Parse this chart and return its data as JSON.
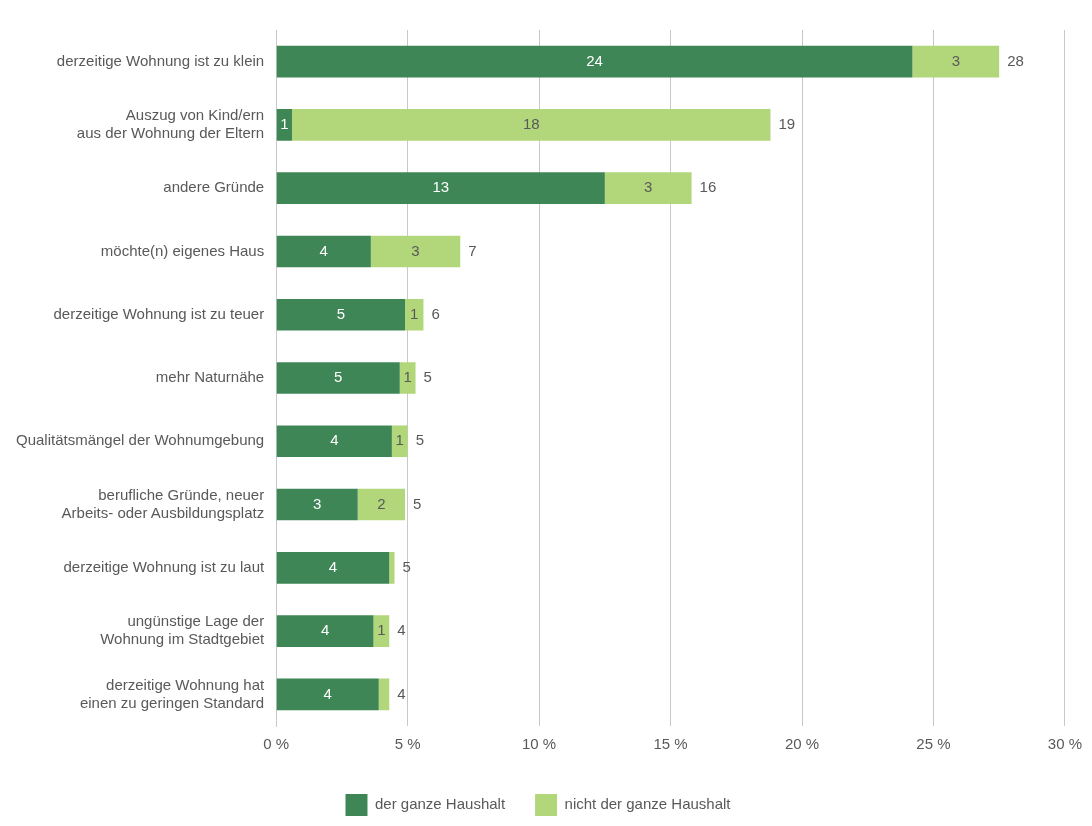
{
  "chart_data": {
    "type": "bar",
    "orientation": "horizontal",
    "stacked": true,
    "categories": [
      "derzeitige Wohnung ist zu klein",
      "Auszug von Kind/ern\naus der Wohnung der Eltern",
      "andere Gründe",
      "möchte(n) eigenes Haus",
      "derzeitige Wohnung ist zu teuer",
      "mehr Naturnähe",
      "Qualitätsmängel der Wohnumgebung",
      "berufliche Gründe, neuer\nArbeits- oder Ausbildungsplatz",
      "derzeitige Wohnung ist zu laut",
      "ungünstige Lage der\nWohnung im Stadtgebiet",
      "derzeitige Wohnung hat\neinen zu geringen Standard"
    ],
    "series": [
      {
        "name": "der ganze Haushalt",
        "color": "#3f8656",
        "values": [
          24.2,
          0.6,
          12.5,
          3.6,
          4.9,
          4.7,
          4.4,
          3.1,
          4.3,
          3.7,
          3.9
        ],
        "value_labels": [
          "24",
          "1",
          "13",
          "4",
          "5",
          "5",
          "4",
          "3",
          "4",
          "4",
          "4"
        ]
      },
      {
        "name": "nicht der ganze Haushalt",
        "color": "#b2d67a",
        "values": [
          3.3,
          18.2,
          3.3,
          3.4,
          0.7,
          0.6,
          0.6,
          1.8,
          0.2,
          0.6,
          0.4
        ],
        "value_labels": [
          "3",
          "18",
          "3",
          "3",
          "1",
          "1",
          "1",
          "2",
          null,
          "1",
          null
        ]
      }
    ],
    "totals": [
      "28",
      "19",
      "16",
      "7",
      "6",
      "5",
      "5",
      "5",
      "5",
      "4",
      "4"
    ],
    "xlim": [
      0,
      30
    ],
    "xticks": [
      {
        "value": 0,
        "label": "0 %"
      },
      {
        "value": 5,
        "label": "5 %"
      },
      {
        "value": 10,
        "label": "10 %"
      },
      {
        "value": 15,
        "label": "15 %"
      },
      {
        "value": 20,
        "label": "20 %"
      },
      {
        "value": 25,
        "label": "25 %"
      },
      {
        "value": 30,
        "label": "30 %"
      }
    ],
    "grid": "x",
    "legend": "bottom"
  }
}
